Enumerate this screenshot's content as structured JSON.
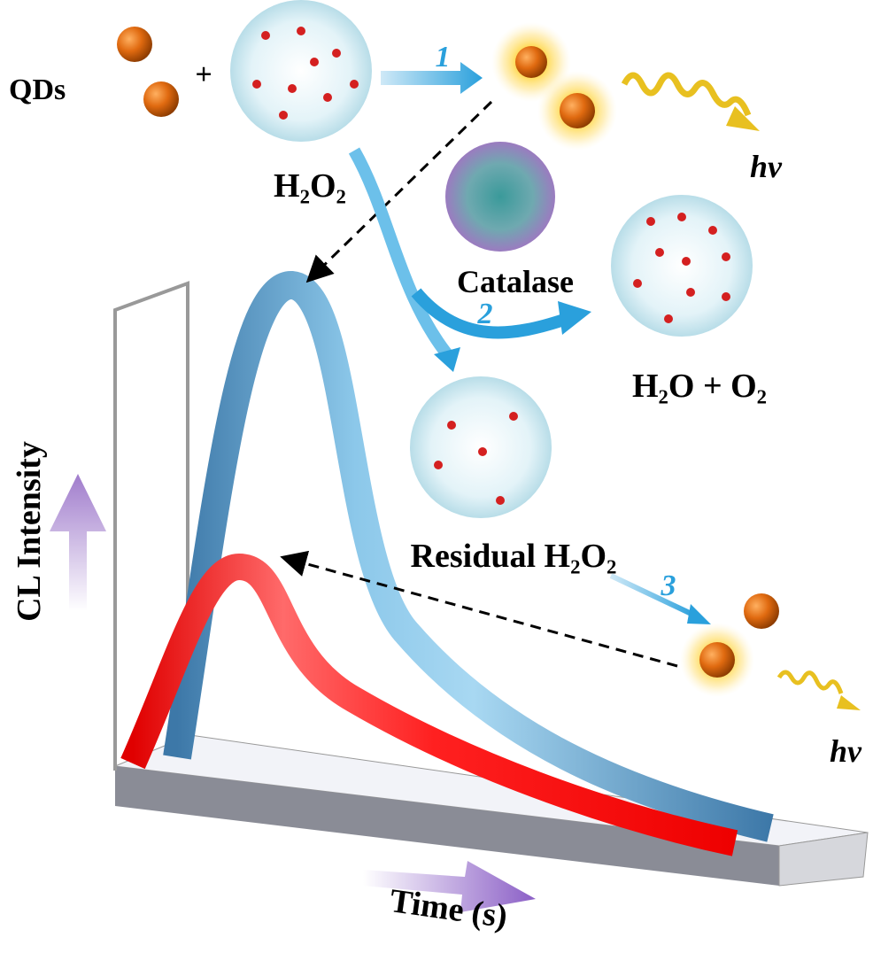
{
  "labels": {
    "qds": "QDs",
    "plus": "+",
    "h2o2": "H₂O₂",
    "step1": "1",
    "hv_top": "hv",
    "catalase": "Catalase",
    "step2": "2",
    "products": "H₂O + O₂",
    "residual": "Residual H₂O₂",
    "step3": "3",
    "hv_bottom": "hv",
    "y_axis": "CL Intensity",
    "x_axis": "Time (s)"
  }
}
